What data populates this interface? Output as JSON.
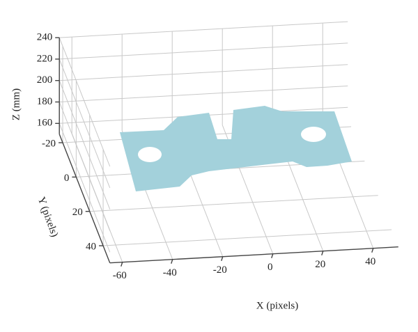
{
  "chart_data": {
    "type": "scatter3d",
    "xlabel": "X (pixels)",
    "ylabel": "Y (pixels)",
    "zlabel": "Z (mm)",
    "xlim": [
      -65,
      50
    ],
    "ylim": [
      -25,
      50
    ],
    "zlim": [
      150,
      240
    ],
    "xticks": [
      -60,
      -40,
      -20,
      0,
      20,
      40
    ],
    "yticks": [
      -20,
      0,
      20,
      40
    ],
    "zticks": [
      160,
      180,
      200,
      220,
      240
    ],
    "grid": true,
    "color": "#a3d1db"
  }
}
